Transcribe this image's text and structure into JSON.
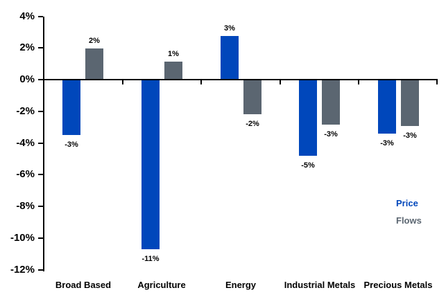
{
  "chart_data": {
    "type": "bar",
    "title": "",
    "categories": [
      "Broad Based",
      "Agriculture",
      "Energy",
      "Industrial Metals",
      "Precious Metals"
    ],
    "series": [
      {
        "name": "Price",
        "color": "#0047BB",
        "values": [
          -3.5,
          -10.7,
          2.75,
          -4.8,
          -3.4
        ],
        "labels": [
          "-3%",
          "-11%",
          "3%",
          "-5%",
          "-3%"
        ]
      },
      {
        "name": "Flows",
        "color": "#5B6671",
        "values": [
          1.95,
          1.15,
          -2.2,
          -2.85,
          -2.95
        ],
        "labels": [
          "2%",
          "1%",
          "-2%",
          "-3%",
          "-3%"
        ]
      }
    ],
    "ylim": [
      -12,
      4
    ],
    "ytick_step": 2,
    "yticks": [
      {
        "value": 4,
        "label": "4%"
      },
      {
        "value": 2,
        "label": "2%"
      },
      {
        "value": 0,
        "label": "0%"
      },
      {
        "value": -2,
        "label": "-2%"
      },
      {
        "value": -4,
        "label": "-4%"
      },
      {
        "value": -6,
        "label": "-6%"
      },
      {
        "value": -8,
        "label": "-8%"
      },
      {
        "value": -10,
        "label": "-10%"
      },
      {
        "value": -12,
        "label": "-12%"
      }
    ],
    "grid": false,
    "axis_color": "#000000",
    "background": "#FFFFFF",
    "legend": {
      "position": "right-middle",
      "entries": [
        {
          "label": "Price",
          "color": "#0047BB"
        },
        {
          "label": "Flows",
          "color": "#5B6671"
        }
      ]
    }
  }
}
